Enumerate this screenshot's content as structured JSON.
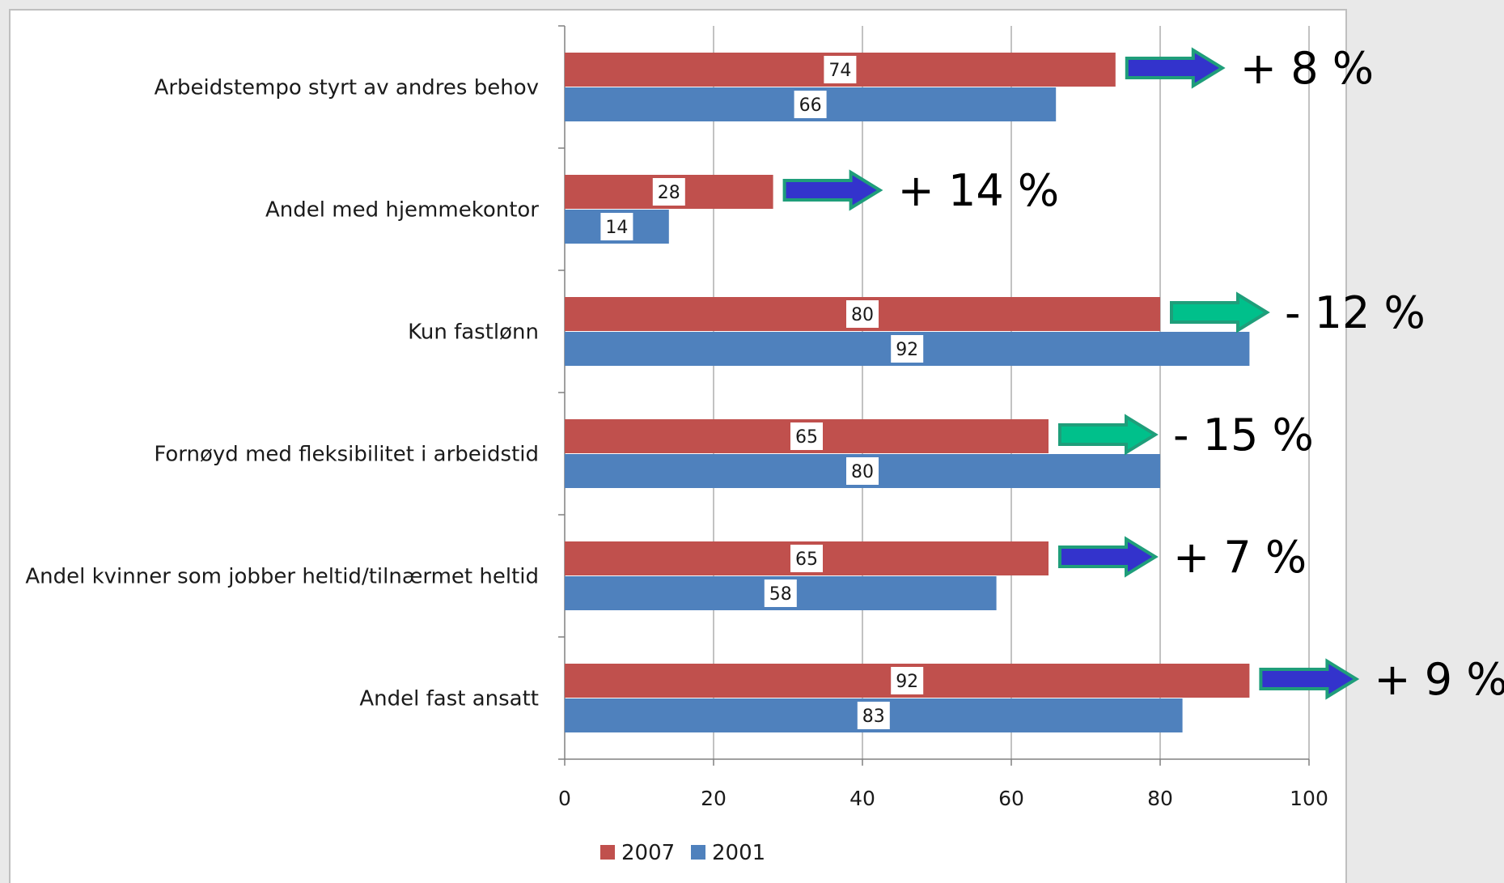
{
  "chart_data": {
    "type": "bar",
    "orientation": "horizontal",
    "categories": [
      "Arbeidstempo styrt av andres behov",
      "Andel med hjemmekontor",
      "Kun fastlønn",
      "Fornøyd med fleksibilitet i arbeidstid",
      "Andel kvinner som jobber heltid/tilnærmet heltid",
      "Andel fast ansatt"
    ],
    "series": [
      {
        "name": "2007",
        "color": "#c0504d",
        "values": [
          74,
          28,
          80,
          65,
          65,
          92
        ]
      },
      {
        "name": "2001",
        "color": "#4f81bd",
        "values": [
          66,
          14,
          92,
          80,
          58,
          83
        ]
      }
    ],
    "xlim": [
      0,
      100
    ],
    "xticks": [
      "0",
      "20",
      "40",
      "60",
      "80",
      "100"
    ],
    "grid": true,
    "legend_position": "bottom",
    "annotations": [
      {
        "text": "+ 8 %",
        "arrow_color": "blue"
      },
      {
        "text": "+ 14 %",
        "arrow_color": "blue"
      },
      {
        "text": "- 12 %",
        "arrow_color": "green"
      },
      {
        "text": "- 15 %",
        "arrow_color": "green"
      },
      {
        "text": "+ 7 %",
        "arrow_color": "blue"
      },
      {
        "text": "+ 9 %",
        "arrow_color": "blue"
      }
    ],
    "arrow_colors": {
      "blue": {
        "fill": "#3333cc",
        "stroke": "#1f9e7a"
      },
      "green": {
        "fill": "#00c08b",
        "stroke": "#1f9e7a"
      }
    }
  }
}
